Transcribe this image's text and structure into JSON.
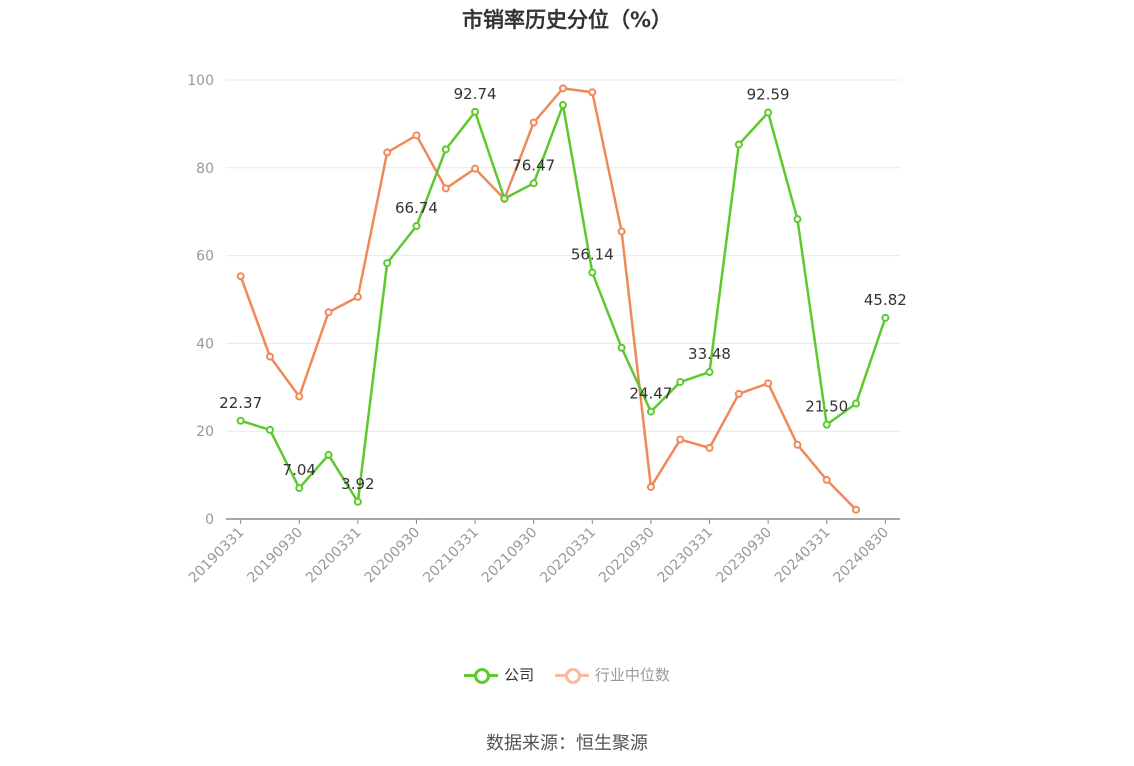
{
  "chart_data": {
    "type": "line",
    "title": "市销率历史分位（%）",
    "ylim": [
      0,
      100
    ],
    "y_ticks": [
      0,
      20,
      40,
      60,
      80,
      100
    ],
    "x": [
      "20190331",
      "20190630",
      "20190930",
      "20191231",
      "20200331",
      "20200630",
      "20200930",
      "20201231",
      "20210331",
      "20210630",
      "20210930",
      "20211231",
      "20220331",
      "20220630",
      "20220930",
      "20221231",
      "20230331",
      "20230630",
      "20230930",
      "20231231",
      "20240331",
      "20240630",
      "20240830"
    ],
    "x_tick_labels": [
      "20190331",
      "20190930",
      "20200331",
      "20200930",
      "20210331",
      "20210930",
      "20220331",
      "20220930",
      "20230331",
      "20230930",
      "20240331",
      "20240830"
    ],
    "grid": true,
    "legend_position": "bottom",
    "series": [
      {
        "name": "公司",
        "color": "#5dc92d",
        "values": [
          22.37,
          20.3,
          7.04,
          14.6,
          3.92,
          58.3,
          66.74,
          84.2,
          92.74,
          73.0,
          76.47,
          94.3,
          56.14,
          39.0,
          24.47,
          31.2,
          33.48,
          85.3,
          92.59,
          68.3,
          21.5,
          26.3,
          45.82
        ],
        "labels": [
          "22.37",
          "",
          "7.04",
          "",
          "3.92",
          "",
          "66.74",
          "",
          "92.74",
          "",
          "76.47",
          "",
          "56.14",
          "",
          "24.47",
          "",
          "33.48",
          "",
          "92.59",
          "",
          "21.50",
          "",
          "45.82"
        ]
      },
      {
        "name": "行业中位数",
        "color": "#f0895a",
        "values": [
          55.3,
          37.0,
          27.9,
          47.1,
          50.6,
          83.5,
          87.4,
          75.3,
          79.8,
          72.9,
          90.3,
          98.1,
          97.2,
          65.5,
          7.3,
          18.1,
          16.2,
          28.5,
          30.9,
          16.9,
          8.9,
          2.1,
          null
        ]
      }
    ]
  },
  "legend": {
    "items": [
      {
        "label": "公司",
        "color": "#5dc92d"
      },
      {
        "label": "行业中位数",
        "color": "#f7b9a0"
      }
    ]
  },
  "source": "数据来源：恒生聚源"
}
